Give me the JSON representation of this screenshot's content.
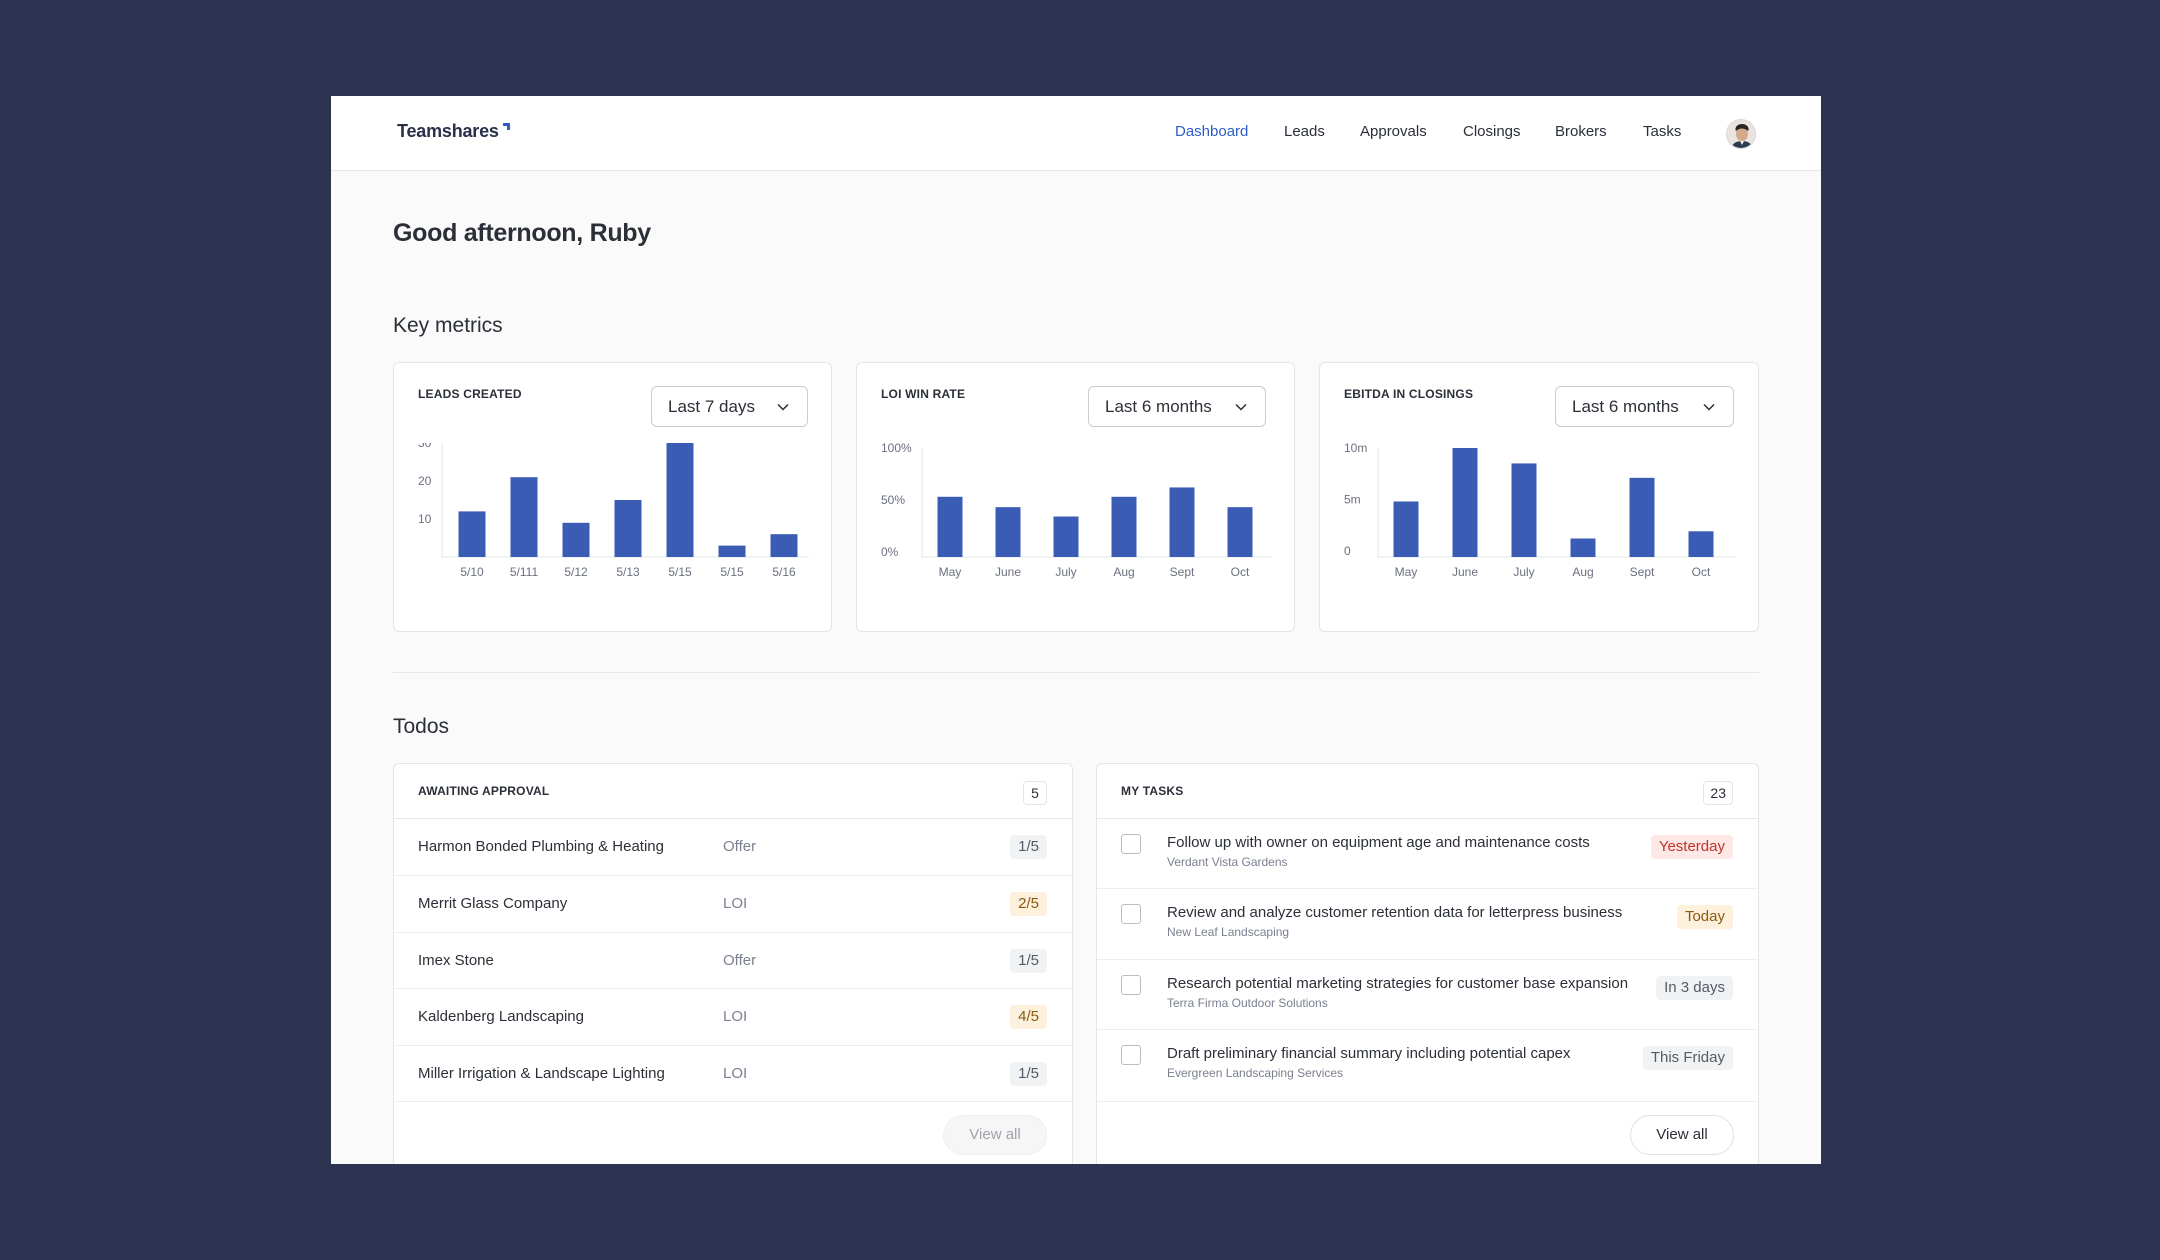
{
  "brand": {
    "name": "Teamshares"
  },
  "nav": {
    "items": [
      "Dashboard",
      "Leads",
      "Approvals",
      "Closings",
      "Brokers",
      "Tasks"
    ],
    "active": "Dashboard"
  },
  "greeting": "Good afternoon, Ruby",
  "sections": {
    "metrics": "Key metrics",
    "todos": "Todos"
  },
  "colors": {
    "accent": "#2f5cc8",
    "bar": "#3b5cb4",
    "background": "#2d3452"
  },
  "metrics": [
    {
      "title": "LEADS CREATED",
      "range": "Last 7 days"
    },
    {
      "title": "LOI WIN RATE",
      "range": "Last 6 months"
    },
    {
      "title": "EBITDA IN CLOSINGS",
      "range": "Last 6 months"
    }
  ],
  "chart_data": [
    {
      "type": "bar",
      "title": "LEADS CREATED",
      "categories": [
        "5/10",
        "5/111",
        "5/12",
        "5/13",
        "5/15",
        "5/15",
        "5/16"
      ],
      "values": [
        12,
        21,
        9,
        15,
        30,
        3,
        6
      ],
      "yticks": [
        "10",
        "20",
        "30"
      ],
      "ytick_values": [
        10,
        20,
        30
      ],
      "ylim": [
        0,
        30
      ],
      "grid": false
    },
    {
      "type": "bar",
      "title": "LOI WIN RATE",
      "categories": [
        "May",
        "June",
        "July",
        "Aug",
        "Sept",
        "Oct"
      ],
      "values": [
        53,
        43,
        34,
        53,
        62,
        43
      ],
      "yticks": [
        "0%",
        "50%",
        "100%"
      ],
      "ytick_values": [
        0,
        50,
        100
      ],
      "ylim": [
        -5,
        100
      ],
      "grid": false
    },
    {
      "type": "bar",
      "title": "EBITDA IN CLOSINGS",
      "categories": [
        "May",
        "June",
        "July",
        "Aug",
        "Sept",
        "Oct"
      ],
      "values": [
        4.8,
        10,
        8.5,
        1.2,
        7.1,
        1.9
      ],
      "yticks": [
        "0",
        "5m",
        "10m"
      ],
      "ytick_values": [
        0,
        5,
        10
      ],
      "ylim": [
        -0.6,
        10
      ],
      "grid": false
    }
  ],
  "approvals": {
    "title": "AWAITING APPROVAL",
    "count": "5",
    "rows": [
      {
        "name": "Harmon Bonded Plumbing & Heating",
        "type": "Offer",
        "step": "1/5",
        "tone": "grey"
      },
      {
        "name": "Merrit Glass Company",
        "type": "LOI",
        "step": "2/5",
        "tone": "amber"
      },
      {
        "name": "Imex Stone",
        "type": "Offer",
        "step": "1/5",
        "tone": "grey"
      },
      {
        "name": "Kaldenberg Landscaping",
        "type": "LOI",
        "step": "4/5",
        "tone": "amber"
      },
      {
        "name": "Miller Irrigation & Landscape Lighting",
        "type": "LOI",
        "step": "1/5",
        "tone": "grey"
      }
    ],
    "view_all": "View all"
  },
  "tasks": {
    "title": "MY TASKS",
    "count": "23",
    "rows": [
      {
        "title": "Follow up with owner on equipment age and maintenance costs",
        "company": "Verdant Vista Gardens",
        "due": "Yesterday",
        "tone": "red"
      },
      {
        "title": "Review and analyze customer retention data for letterpress business",
        "company": "New Leaf Landscaping",
        "due": "Today",
        "tone": "amber"
      },
      {
        "title": "Research potential marketing strategies for customer base expansion",
        "company": "Terra Firma Outdoor Solutions",
        "due": "In 3 days",
        "tone": "grey"
      },
      {
        "title": "Draft preliminary financial summary including potential capex",
        "company": "Evergreen Landscaping Services",
        "due": "This Friday",
        "tone": "grey"
      }
    ],
    "view_all": "View all"
  }
}
